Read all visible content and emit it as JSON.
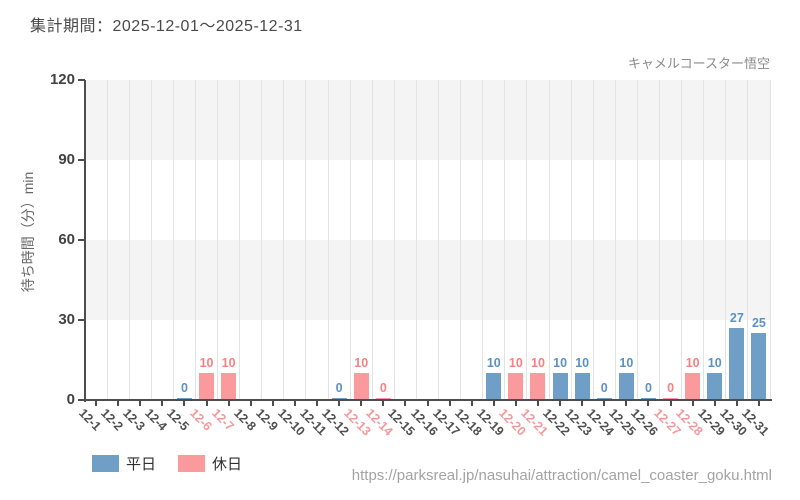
{
  "header": {
    "period_label": "集計期間：2025-12-01～2025-12-31"
  },
  "attraction_name": "キャメルコースター悟空",
  "source_url": "https://parksreal.jp/nasuhai/attraction/camel_coaster_goku.html",
  "legend": [
    {
      "key": "weekday",
      "label": "平日"
    },
    {
      "key": "weekend",
      "label": "休日"
    }
  ],
  "colors": {
    "weekday_bar": "#6f9ec6",
    "weekday_text": "#5b92c3",
    "weekend_bar": "#fa9a9c",
    "weekend_text": "#f87f82",
    "weekday_tick": "#4f4f4f",
    "weekend_tick": "#f5989b",
    "band_gray": "#f4f4f4",
    "band_white": "#ffffff",
    "grid": "#e3e3e3",
    "axis": "#4d4d4d"
  },
  "chart_data": {
    "type": "bar",
    "title": "集計期間：2025-12-01～2025-12-31",
    "ylabel": "待ち時間（分）min",
    "ylim": [
      0,
      120
    ],
    "yticks": [
      0,
      30,
      60,
      90,
      120
    ],
    "grid": "vertical category gridlines + alternating horizontal bands (gray/white per 30 units)",
    "legend_position": "bottom-left",
    "categories": [
      "12-1",
      "12-2",
      "12-3",
      "12-4",
      "12-5",
      "12-6",
      "12-7",
      "12-8",
      "12-9",
      "12-10",
      "12-11",
      "12-12",
      "12-13",
      "12-14",
      "12-15",
      "12-16",
      "12-17",
      "12-18",
      "12-19",
      "12-20",
      "12-21",
      "12-22",
      "12-23",
      "12-24",
      "12-25",
      "12-26",
      "12-27",
      "12-28",
      "12-29",
      "12-30",
      "12-31"
    ],
    "days": [
      {
        "date": "12-1",
        "day_type": "weekday",
        "value": null
      },
      {
        "date": "12-2",
        "day_type": "weekday",
        "value": null
      },
      {
        "date": "12-3",
        "day_type": "weekday",
        "value": null
      },
      {
        "date": "12-4",
        "day_type": "weekday",
        "value": null
      },
      {
        "date": "12-5",
        "day_type": "weekday",
        "value": 0
      },
      {
        "date": "12-6",
        "day_type": "weekend",
        "value": 10
      },
      {
        "date": "12-7",
        "day_type": "weekend",
        "value": 10
      },
      {
        "date": "12-8",
        "day_type": "weekday",
        "value": null
      },
      {
        "date": "12-9",
        "day_type": "weekday",
        "value": null
      },
      {
        "date": "12-10",
        "day_type": "weekday",
        "value": null
      },
      {
        "date": "12-11",
        "day_type": "weekday",
        "value": null
      },
      {
        "date": "12-12",
        "day_type": "weekday",
        "value": 0
      },
      {
        "date": "12-13",
        "day_type": "weekend",
        "value": 10
      },
      {
        "date": "12-14",
        "day_type": "weekend",
        "value": 0
      },
      {
        "date": "12-15",
        "day_type": "weekday",
        "value": null
      },
      {
        "date": "12-16",
        "day_type": "weekday",
        "value": null
      },
      {
        "date": "12-17",
        "day_type": "weekday",
        "value": null
      },
      {
        "date": "12-18",
        "day_type": "weekday",
        "value": null
      },
      {
        "date": "12-19",
        "day_type": "weekday",
        "value": 10
      },
      {
        "date": "12-20",
        "day_type": "weekend",
        "value": 10
      },
      {
        "date": "12-21",
        "day_type": "weekend",
        "value": 10
      },
      {
        "date": "12-22",
        "day_type": "weekday",
        "value": 10
      },
      {
        "date": "12-23",
        "day_type": "weekday",
        "value": 10
      },
      {
        "date": "12-24",
        "day_type": "weekday",
        "value": 0
      },
      {
        "date": "12-25",
        "day_type": "weekday",
        "value": 10
      },
      {
        "date": "12-26",
        "day_type": "weekday",
        "value": 0
      },
      {
        "date": "12-27",
        "day_type": "weekend",
        "value": 0
      },
      {
        "date": "12-28",
        "day_type": "weekend",
        "value": 10
      },
      {
        "date": "12-29",
        "day_type": "weekday",
        "value": 10
      },
      {
        "date": "12-30",
        "day_type": "weekday",
        "value": 27
      },
      {
        "date": "12-31",
        "day_type": "weekday",
        "value": 25
      }
    ]
  }
}
